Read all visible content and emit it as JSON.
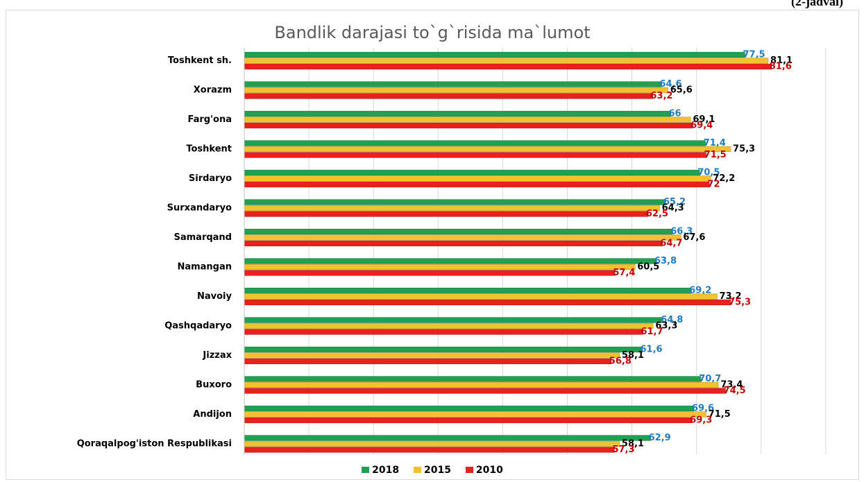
{
  "corner_note": "(2-jadval)",
  "colors": {
    "2018": "#20a050",
    "2015": "#f2c12e",
    "2010": "#e8201e",
    "label_2018": "#1f7bc0",
    "label_2015": "#000000",
    "label_2010": "#c00000",
    "grid": "#d9d9d9",
    "title": "#595959"
  },
  "chart_data": {
    "type": "bar",
    "orientation": "horizontal",
    "title": "Bandlik darajasi to`g`risida ma`lumot",
    "xlim": [
      0,
      90
    ],
    "grid": true,
    "legend_position": "bottom",
    "categories": [
      "Toshkent sh.",
      "Xorazm",
      "Farg'ona",
      "Toshkent",
      "Sirdaryo",
      "Surxandaryo",
      "Samarqand",
      "Namangan",
      "Navoiy",
      "Qashqadaryo",
      "Jizzax",
      "Buxoro",
      "Andijon",
      "Qoraqalpog'iston Respublikasi"
    ],
    "series": [
      {
        "name": "2018",
        "values": [
          77.5,
          64.6,
          66,
          71.4,
          70.5,
          65.2,
          66.3,
          63.8,
          69.2,
          64.8,
          61.6,
          70.7,
          69.6,
          62.9
        ],
        "labels": [
          "77,5",
          "64,6",
          "66",
          "71,4",
          "70,5",
          "65,2",
          "66,3",
          "63,8",
          "69,2",
          "64,8",
          "61,6",
          "70,7",
          "69,6",
          "62,9"
        ]
      },
      {
        "name": "2015",
        "values": [
          81.1,
          65.6,
          69.1,
          75.3,
          72.2,
          64.3,
          67.6,
          60.5,
          73.2,
          63.3,
          58.1,
          73.4,
          71.5,
          58.1
        ],
        "labels": [
          "81,1",
          "65,6",
          "69,1",
          "75,3",
          "72,2",
          "64,3",
          "67,6",
          "60,5",
          "73,2",
          "63,3",
          "58,1",
          "73,4",
          "71,5",
          "58,1"
        ]
      },
      {
        "name": "2010",
        "values": [
          81.6,
          63.2,
          69.4,
          71.5,
          72,
          62.5,
          64.7,
          57.4,
          75.3,
          61.7,
          56.8,
          74.5,
          69.3,
          57.3
        ],
        "labels": [
          "81,6",
          "63,2",
          "69,4",
          "71,5",
          "72",
          "62,5",
          "64,7",
          "57,4",
          "75,3",
          "61,7",
          "56,8",
          "74,5",
          "69,3",
          "57,3"
        ]
      }
    ]
  }
}
